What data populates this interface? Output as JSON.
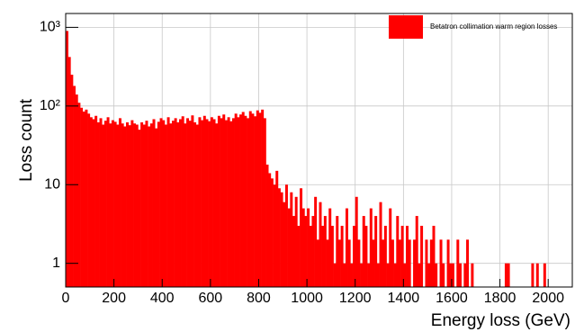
{
  "chart_data": {
    "type": "histogram",
    "x_label": "Energy loss (GeV)",
    "y_label": "Loss count",
    "legend_label": "Betatron collimation warm region losses",
    "color": "#ff0000",
    "log_y": true,
    "grid": true,
    "legend_position": "upper right",
    "xlim": [
      0,
      2100
    ],
    "ylim": [
      0.5,
      1500
    ],
    "xticks": [
      0,
      200,
      400,
      600,
      800,
      1000,
      1200,
      1400,
      1600,
      1800,
      2000
    ],
    "yticks": [
      1,
      10,
      {
        "value": 100,
        "label": "10²"
      },
      {
        "value": 1000,
        "label": "10³"
      }
    ],
    "bins": [
      0,
      10,
      20,
      30,
      40,
      50,
      60,
      70,
      80,
      90,
      100,
      110,
      120,
      130,
      140,
      150,
      160,
      170,
      180,
      190,
      200,
      210,
      220,
      230,
      240,
      250,
      260,
      270,
      280,
      290,
      300,
      310,
      320,
      330,
      340,
      350,
      360,
      370,
      380,
      390,
      400,
      410,
      420,
      430,
      440,
      450,
      460,
      470,
      480,
      490,
      500,
      510,
      520,
      530,
      540,
      550,
      560,
      570,
      580,
      590,
      600,
      610,
      620,
      630,
      640,
      650,
      660,
      670,
      680,
      690,
      700,
      710,
      720,
      730,
      740,
      750,
      760,
      770,
      780,
      790,
      800,
      810,
      820,
      830,
      840,
      850,
      860,
      870,
      880,
      890,
      900,
      910,
      920,
      930,
      940,
      950,
      960,
      970,
      980,
      990,
      1000,
      1010,
      1020,
      1030,
      1040,
      1050,
      1060,
      1070,
      1080,
      1090,
      1100,
      1110,
      1120,
      1130,
      1140,
      1150,
      1160,
      1170,
      1180,
      1190,
      1200,
      1210,
      1220,
      1230,
      1240,
      1250,
      1260,
      1270,
      1280,
      1290,
      1300,
      1310,
      1320,
      1330,
      1340,
      1350,
      1360,
      1370,
      1380,
      1390,
      1400,
      1410,
      1420,
      1430,
      1440,
      1450,
      1460,
      1470,
      1480,
      1490,
      1500,
      1510,
      1520,
      1530,
      1540,
      1550,
      1560,
      1570,
      1580,
      1590,
      1600,
      1610,
      1620,
      1630,
      1640,
      1650,
      1660,
      1670,
      1680,
      1690,
      1700,
      1710,
      1720,
      1730,
      1740,
      1750,
      1760,
      1770,
      1780,
      1790,
      1800,
      1810,
      1820,
      1830,
      1840,
      1850,
      1860,
      1870,
      1880,
      1890,
      1900,
      1910,
      1920,
      1930,
      1940,
      1950,
      1960,
      1970,
      1980,
      1990,
      2000,
      2010,
      2020,
      2030,
      2040,
      2050,
      2060,
      2070,
      2080,
      2090,
      2100
    ],
    "values": [
      900,
      420,
      250,
      180,
      140,
      110,
      95,
      85,
      90,
      80,
      72,
      68,
      75,
      62,
      70,
      58,
      65,
      72,
      60,
      66,
      63,
      58,
      70,
      60,
      55,
      62,
      57,
      66,
      60,
      58,
      50,
      62,
      58,
      65,
      55,
      60,
      68,
      52,
      63,
      70,
      66,
      58,
      72,
      60,
      65,
      70,
      62,
      68,
      74,
      60,
      70,
      65,
      76,
      62,
      58,
      72,
      66,
      75,
      68,
      64,
      72,
      68,
      60,
      75,
      70,
      78,
      66,
      72,
      64,
      70,
      80,
      72,
      78,
      84,
      75,
      70,
      86,
      80,
      74,
      88,
      82,
      90,
      70,
      18,
      14,
      12,
      10,
      15,
      9,
      8,
      6,
      10,
      5,
      8,
      4,
      7,
      3,
      9,
      5,
      4,
      5,
      3,
      4,
      7,
      2,
      6,
      3,
      4,
      2,
      5,
      3,
      1,
      4,
      2,
      3,
      1,
      5,
      2,
      1,
      3,
      7,
      2,
      1,
      4,
      3,
      1,
      5,
      2,
      4,
      1,
      6,
      2,
      3,
      1,
      5,
      2,
      1,
      4,
      2,
      3,
      1,
      3,
      2,
      0,
      2,
      4,
      1,
      3,
      0,
      2,
      1,
      2,
      3,
      1,
      0,
      2,
      1,
      0,
      2,
      1,
      1,
      0,
      2,
      1,
      0,
      1,
      2,
      0,
      1,
      0,
      0,
      0,
      0,
      0,
      0,
      0,
      0,
      0,
      0,
      0,
      0,
      0,
      1,
      1,
      0,
      0,
      0,
      0,
      0,
      0,
      0,
      0,
      0,
      1,
      0,
      1,
      0,
      0,
      1,
      0,
      0,
      0,
      0,
      0,
      0,
      0,
      0,
      0,
      0,
      0
    ]
  }
}
